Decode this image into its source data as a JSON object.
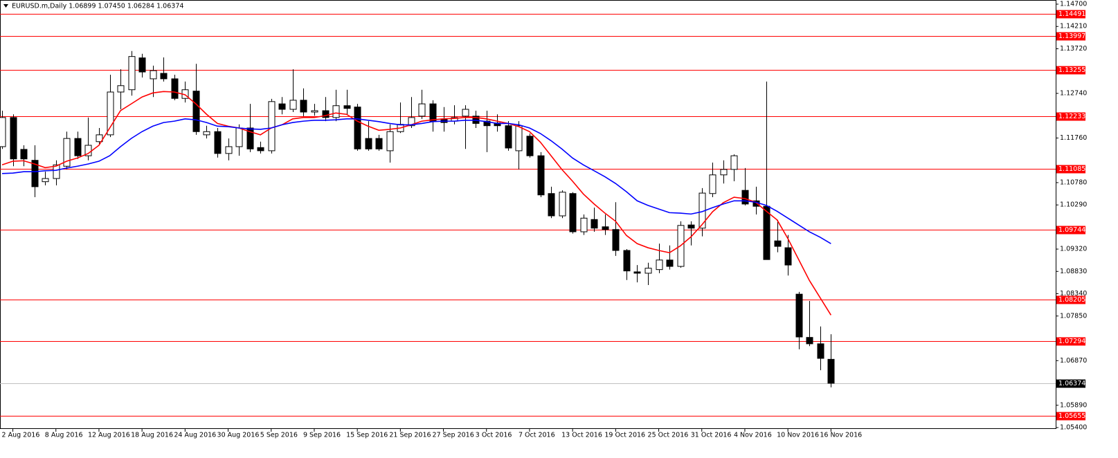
{
  "chart_data": {
    "type": "candlestick",
    "title": "EURUSD.m,Daily  1.06899 1.07450 1.06284 1.06374",
    "categories": [
      null,
      "2 Aug 2016",
      null,
      null,
      null,
      "8 Aug 2016",
      null,
      null,
      null,
      "12 Aug 2016",
      null,
      null,
      null,
      "18 Aug 2016",
      null,
      null,
      null,
      "24 Aug 2016",
      null,
      null,
      null,
      "30 Aug 2016",
      null,
      null,
      null,
      "5 Sep 2016",
      null,
      null,
      null,
      "9 Sep 2016",
      null,
      null,
      null,
      "15 Sep 2016",
      null,
      null,
      null,
      "21 Sep 2016",
      null,
      null,
      null,
      "27 Sep 2016",
      null,
      null,
      null,
      "3 Oct 2016",
      null,
      null,
      null,
      "7 Oct 2016",
      null,
      null,
      null,
      "13 Oct 2016",
      null,
      null,
      null,
      "19 Oct 2016",
      null,
      null,
      null,
      "25 Oct 2016",
      null,
      null,
      null,
      "31 Oct 2016",
      null,
      null,
      null,
      "4 Nov 2016",
      null,
      null,
      null,
      "10 Nov 2016",
      null,
      null,
      null,
      "16 Nov 2016"
    ],
    "open": [
      1.1157,
      1.1221,
      1.1151,
      1.1127,
      1.108,
      1.1087,
      1.1114,
      1.1175,
      1.1137,
      1.1168,
      1.1183,
      1.1277,
      1.1282,
      1.1352,
      1.1306,
      1.1318,
      1.1306,
      1.1263,
      1.1279,
      1.1183,
      1.119,
      1.1142,
      1.1157,
      1.1198,
      1.1155,
      1.1148,
      1.1251,
      1.1239,
      1.1259,
      1.1233,
      1.1236,
      1.1221,
      1.1247,
      1.1244,
      1.1175,
      1.1175,
      1.1148,
      1.119,
      1.1203,
      1.1224,
      1.1251,
      1.1218,
      1.1213,
      1.1224,
      1.1224,
      1.1213,
      1.1209,
      1.1203,
      1.1148,
      1.118,
      1.1137,
      1.1054,
      1.1005,
      1.1054,
      1.097,
      1.0997,
      1.0981,
      1.0975,
      1.0929,
      1.0882,
      1.0879,
      1.0887,
      1.0908,
      1.0894,
      1.0985,
      1.0978,
      1.1054,
      1.1095,
      1.1107,
      1.1061,
      1.1038,
      1.1026,
      1.095,
      1.0935,
      1.0833,
      1.0738,
      1.0724,
      1.06899
    ],
    "high": [
      1.1236,
      1.1228,
      1.116,
      1.116,
      1.1102,
      1.1127,
      1.119,
      1.119,
      1.1221,
      1.1198,
      1.1315,
      1.1327,
      1.1367,
      1.1361,
      1.1335,
      1.1353,
      1.1315,
      1.13,
      1.1339,
      1.1203,
      1.1198,
      1.1175,
      1.1206,
      1.1251,
      1.1168,
      1.1262,
      1.1266,
      1.1327,
      1.1285,
      1.1251,
      1.1266,
      1.1282,
      1.1282,
      1.1251,
      1.1213,
      1.1183,
      1.1206,
      1.1254,
      1.1266,
      1.1282,
      1.1259,
      1.1244,
      1.1248,
      1.1248,
      1.1236,
      1.1236,
      1.1228,
      1.1213,
      1.1213,
      1.1186,
      1.1145,
      1.1069,
      1.1061,
      1.1057,
      1.1008,
      1.1023,
      1.1008,
      1.1035,
      1.0932,
      1.0897,
      1.0902,
      1.0944,
      1.094,
      1.0993,
      1.0993,
      1.1066,
      1.1122,
      1.1127,
      1.114,
      1.111,
      1.1069,
      1.13,
      1.0996,
      1.0963,
      1.0838,
      1.0818,
      1.0762,
      1.0745
    ],
    "low": [
      1.1152,
      1.1114,
      1.1114,
      1.1046,
      1.1072,
      1.1072,
      1.1107,
      1.113,
      1.1127,
      1.116,
      1.1178,
      1.1239,
      1.1269,
      1.1309,
      1.1266,
      1.13,
      1.1259,
      1.1254,
      1.1183,
      1.1175,
      1.1133,
      1.1127,
      1.1137,
      1.1145,
      1.1142,
      1.1142,
      1.1228,
      1.1233,
      1.1224,
      1.1225,
      1.1213,
      1.1213,
      1.1228,
      1.1148,
      1.1148,
      1.1148,
      1.1122,
      1.1187,
      1.1198,
      1.1218,
      1.119,
      1.119,
      1.1206,
      1.1152,
      1.1198,
      1.1145,
      1.119,
      1.1148,
      1.1107,
      1.1133,
      1.1046,
      1.1,
      1.1,
      1.0966,
      1.0963,
      1.097,
      1.0963,
      1.0917,
      1.0864,
      1.0859,
      1.0853,
      1.0879,
      1.0887,
      1.0891,
      1.094,
      1.096,
      1.1046,
      1.1076,
      1.1081,
      1.1028,
      1.1008,
      1.0909,
      1.0925,
      1.0874,
      1.0712,
      1.0719,
      1.0666,
      1.06284
    ],
    "close": [
      1.1221,
      1.113,
      1.113,
      1.1069,
      1.1087,
      1.1117,
      1.1175,
      1.1137,
      1.116,
      1.1183,
      1.1277,
      1.1291,
      1.1355,
      1.1321,
      1.1324,
      1.1306,
      1.1263,
      1.1282,
      1.119,
      1.119,
      1.1142,
      1.1157,
      1.1198,
      1.1152,
      1.1148,
      1.1256,
      1.1239,
      1.1259,
      1.1233,
      1.1236,
      1.1221,
      1.1247,
      1.1241,
      1.1152,
      1.1152,
      1.1152,
      1.119,
      1.1206,
      1.1221,
      1.1251,
      1.1213,
      1.121,
      1.1221,
      1.1239,
      1.1208,
      1.1203,
      1.1203,
      1.1154,
      1.1203,
      1.1137,
      1.1051,
      1.1005,
      1.1057,
      1.097,
      1.1,
      1.0978,
      1.0975,
      1.0929,
      1.0884,
      1.0879,
      1.089,
      1.0908,
      1.0894,
      1.0984,
      1.0978,
      1.1055,
      1.1095,
      1.1107,
      1.1137,
      1.1031,
      1.1026,
      1.0909,
      1.0938,
      1.0897,
      1.0739,
      1.0724,
      1.0692,
      1.06374
    ],
    "bull_color": "#ffffff",
    "bear_color": "#000000",
    "overlays": [
      {
        "type": "line",
        "color": "#ff0000",
        "values": [
          1.1117,
          1.1125,
          1.1126,
          1.1119,
          1.1111,
          1.1114,
          1.1125,
          1.1132,
          1.1142,
          1.116,
          1.1198,
          1.1236,
          1.1251,
          1.1266,
          1.1275,
          1.1278,
          1.1277,
          1.1271,
          1.1251,
          1.1228,
          1.1208,
          1.1202,
          1.1198,
          1.119,
          1.1183,
          1.1198,
          1.1205,
          1.1218,
          1.1221,
          1.1221,
          1.1225,
          1.1231,
          1.1228,
          1.1213,
          1.1202,
          1.1193,
          1.1195,
          1.1198,
          1.1205,
          1.1213,
          1.1216,
          1.1218,
          1.1219,
          1.1221,
          1.1221,
          1.1218,
          1.1213,
          1.1208,
          1.1201,
          1.119,
          1.1167,
          1.1137,
          1.1107,
          1.1081,
          1.1053,
          1.1031,
          1.1011,
          1.0993,
          1.0962,
          1.0944,
          1.0935,
          1.0929,
          1.0924,
          1.0939,
          1.0959,
          1.0985,
          1.1014,
          1.1034,
          1.1046,
          1.1043,
          1.1035,
          1.1015,
          1.0996,
          1.0955,
          1.0909,
          1.0863,
          1.0825,
          1.0787
        ]
      },
      {
        "type": "line",
        "color": "#0000ff",
        "values": [
          1.1098,
          1.1099,
          1.1102,
          1.1102,
          1.1104,
          1.1105,
          1.111,
          1.1114,
          1.1119,
          1.1125,
          1.1137,
          1.1157,
          1.1175,
          1.119,
          1.1202,
          1.121,
          1.1213,
          1.1218,
          1.1216,
          1.121,
          1.1202,
          1.1201,
          1.1198,
          1.1196,
          1.1195,
          1.1198,
          1.1205,
          1.121,
          1.1213,
          1.1215,
          1.1215,
          1.1216,
          1.1218,
          1.1218,
          1.1215,
          1.1212,
          1.1208,
          1.1205,
          1.1205,
          1.1208,
          1.1212,
          1.1213,
          1.1213,
          1.1215,
          1.1215,
          1.1212,
          1.1208,
          1.1208,
          1.1205,
          1.1198,
          1.1186,
          1.117,
          1.1152,
          1.1132,
          1.1117,
          1.1104,
          1.1091,
          1.1076,
          1.1058,
          1.1038,
          1.1028,
          1.102,
          1.1012,
          1.1011,
          1.1009,
          1.1014,
          1.1023,
          1.1031,
          1.1038,
          1.1038,
          1.1035,
          1.1028,
          1.1015,
          1.1,
          1.0985,
          1.097,
          1.0958,
          1.0944
        ]
      }
    ],
    "levels": {
      "color": "#ff0000",
      "values": [
        1.14491,
        1.13997,
        1.13255,
        1.12233,
        1.11085,
        1.09744,
        1.08205,
        1.07294,
        1.05655
      ]
    },
    "current_price": {
      "color": "#c0c0c0",
      "value": 1.06374
    },
    "ylim": [
      1.054,
      1.147
    ],
    "yticks": [
      {
        "value": 1.147,
        "label": "1.14700"
      },
      {
        "value": 1.1421,
        "label": "1.14210"
      },
      {
        "value": 1.1372,
        "label": "1.13720"
      },
      {
        "value": 1.1274,
        "label": "1.12740"
      },
      {
        "value": 1.1176,
        "label": "1.11760"
      },
      {
        "value": 1.1078,
        "label": "1.10780"
      },
      {
        "value": 1.1029,
        "label": "1.10290"
      },
      {
        "value": 1.0932,
        "label": "1.09320"
      },
      {
        "value": 1.0883,
        "label": "1.08830"
      },
      {
        "value": 1.0834,
        "label": "1.08340"
      },
      {
        "value": 1.0785,
        "label": "1.07850"
      },
      {
        "value": 1.0687,
        "label": "1.06870"
      },
      {
        "value": 1.0589,
        "label": "1.05890"
      },
      {
        "value": 1.054,
        "label": "1.05400"
      }
    ],
    "grid": false
  }
}
